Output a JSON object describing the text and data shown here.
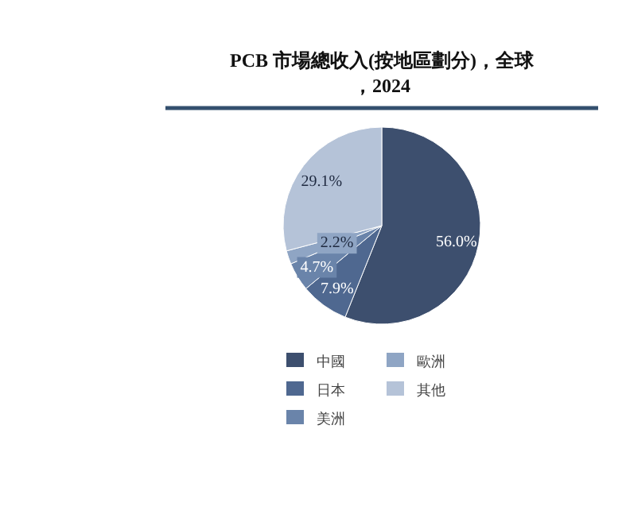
{
  "chart_data": {
    "type": "pie",
    "title": "PCB 市場總收入(按地區劃分)，全球，2024",
    "categories": [
      "中國",
      "日本",
      "美洲",
      "歐洲",
      "其他"
    ],
    "values": [
      56.0,
      7.9,
      4.7,
      2.2,
      29.1
    ],
    "colors": [
      "#3d4f6e",
      "#4f6890",
      "#6a84aa",
      "#8fa5c4",
      "#b5c3d8"
    ],
    "value_labels": [
      "56.0%",
      "7.9%",
      "4.7%",
      "2.2%",
      "29.1%"
    ],
    "legend": "bottom"
  }
}
